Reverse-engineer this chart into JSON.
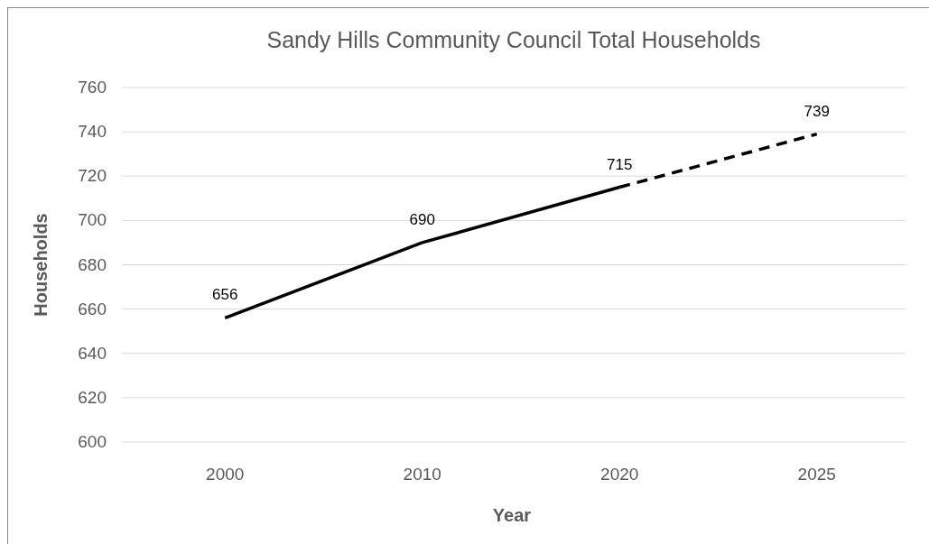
{
  "chart_data": {
    "type": "line",
    "title": "Sandy Hills Community Council Total Households",
    "xlabel": "Year",
    "ylabel": "Households",
    "categories": [
      "2000",
      "2010",
      "2020",
      "2025"
    ],
    "series": [
      {
        "color": "#000000",
        "line_style": "solid",
        "values": [
          656,
          690,
          715,
          null
        ],
        "value_labels": [
          "656",
          "690",
          "715",
          null
        ]
      },
      {
        "color": "#000000",
        "line_style": "dashed",
        "values": [
          null,
          null,
          715,
          739
        ],
        "value_labels": [
          null,
          null,
          null,
          "739"
        ]
      }
    ],
    "ylim": [
      600,
      760
    ],
    "yticks": [
      600,
      620,
      640,
      660,
      680,
      700,
      720,
      740,
      760
    ],
    "grid": "y"
  }
}
